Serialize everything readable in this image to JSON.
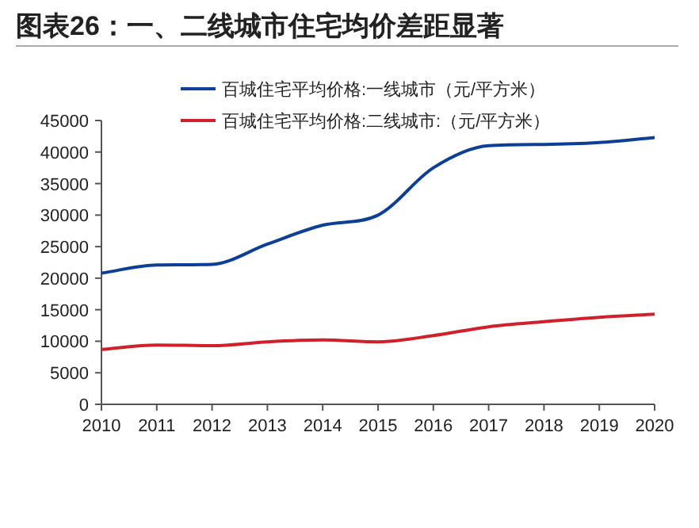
{
  "chart_data": {
    "type": "line",
    "title": "图表26：一、二线城市住宅均价差距显著",
    "x": [
      2010,
      2011,
      2012,
      2013,
      2014,
      2015,
      2016,
      2017,
      2018,
      2019,
      2020
    ],
    "series": [
      {
        "name": "百城住宅平均价格:一线城市（元/平方米）",
        "color": "#0d3f94",
        "values": [
          20800,
          22100,
          22200,
          25400,
          28400,
          30000,
          37500,
          41000,
          41200,
          41500,
          42300
        ]
      },
      {
        "name": "百城住宅平均价格:二线城市:（元/平方米）",
        "color": "#d0202a",
        "values": [
          8700,
          9400,
          9300,
          9900,
          10200,
          9900,
          10900,
          12300,
          13100,
          13800,
          14300
        ]
      }
    ],
    "xlim": [
      2010,
      2020
    ],
    "xticks": [
      2010,
      2011,
      2012,
      2013,
      2014,
      2015,
      2016,
      2017,
      2018,
      2019,
      2020
    ],
    "ylim": [
      0,
      45000
    ],
    "yticks": [
      0,
      5000,
      10000,
      15000,
      20000,
      25000,
      30000,
      35000,
      40000,
      45000
    ],
    "legend": "top",
    "grid": false,
    "marker": "none",
    "line_style": "solid"
  }
}
